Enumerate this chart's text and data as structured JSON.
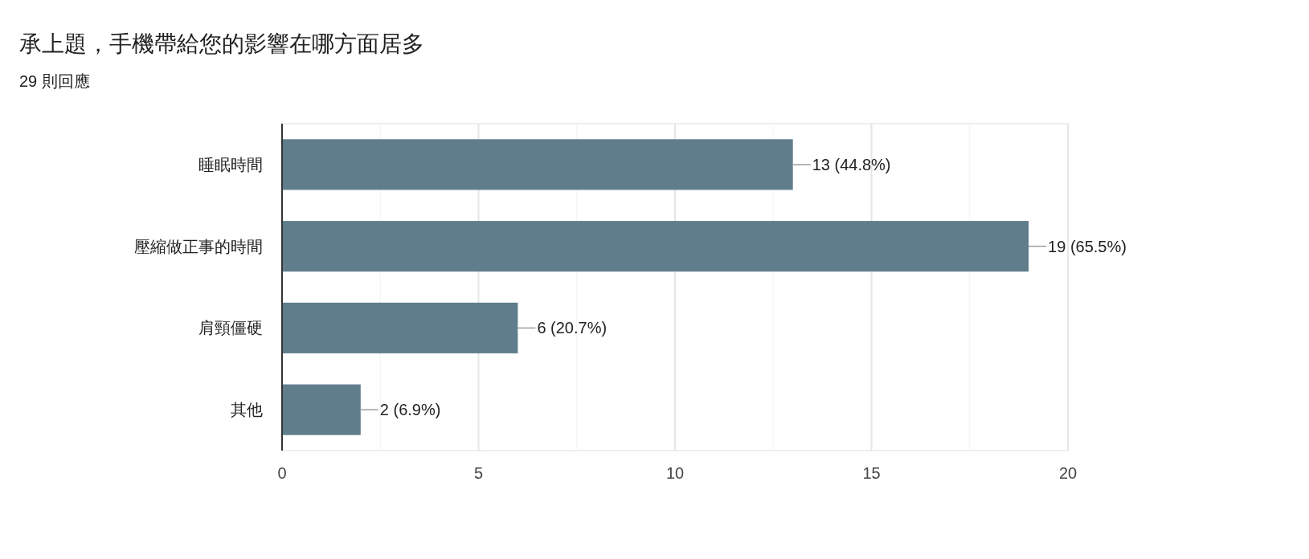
{
  "chart_data": {
    "type": "bar",
    "orientation": "horizontal",
    "title": "承上題，手機帶給您的影響在哪方面居多",
    "subtitle": "29 則回應",
    "categories": [
      "睡眠時間",
      "壓縮做正事的時間",
      "肩頸僵硬",
      "其他"
    ],
    "values": [
      13,
      19,
      6,
      2
    ],
    "color": "#607d8b",
    "value_labels": [
      "13 (44.8%)",
      "19 (65.5%)",
      "6 (20.7%)",
      "2 (6.9%)"
    ],
    "xlim": [
      0,
      20
    ],
    "xticks": [
      0,
      {
        "value": 2.5,
        "label": null
      },
      5,
      {
        "value": 7.5,
        "label": null
      },
      10,
      {
        "value": 12.5,
        "label": null
      },
      15,
      {
        "value": 17.5,
        "label": null
      },
      20
    ],
    "grid": "x"
  }
}
